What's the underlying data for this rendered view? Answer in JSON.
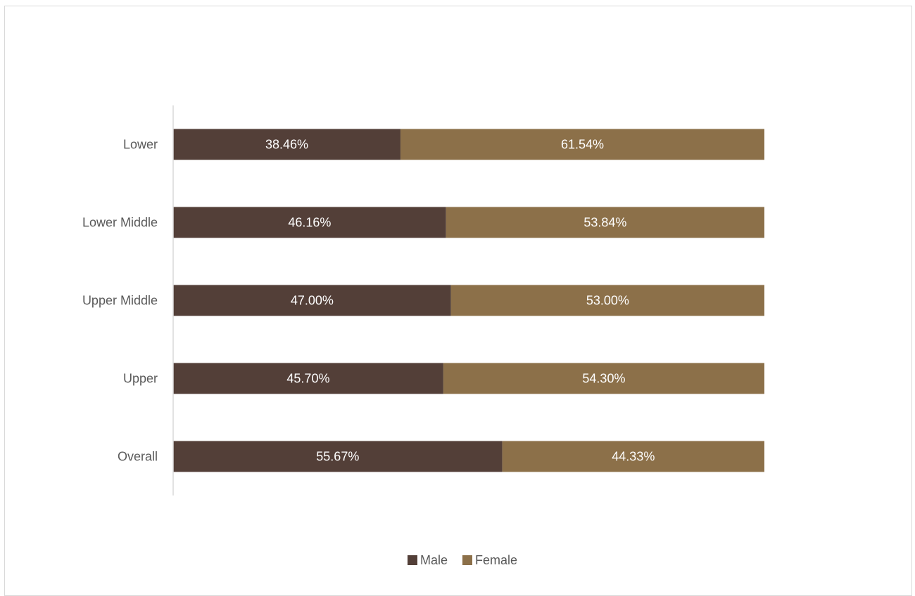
{
  "chart_data": {
    "type": "bar",
    "orientation": "horizontal",
    "stacked": "percent",
    "categories": [
      "Lower",
      "Lower Middle",
      "Upper Middle",
      "Upper",
      "Overall"
    ],
    "series": [
      {
        "name": "Male",
        "color": "#533f38",
        "values": [
          38.46,
          46.16,
          47.0,
          45.7,
          55.67
        ],
        "labels": [
          "38.46%",
          "46.16%",
          "47.00%",
          "45.70%",
          "55.67%"
        ]
      },
      {
        "name": "Female",
        "color": "#8c7049",
        "values": [
          61.54,
          53.84,
          53.0,
          54.3,
          44.33
        ],
        "labels": [
          "61.54%",
          "53.84%",
          "53.00%",
          "54.30%",
          "44.33%"
        ]
      }
    ],
    "xlim": [
      0,
      100
    ],
    "grid": false,
    "legend": "bottom-center",
    "axis_color": "#d9d9d9",
    "label_color": "#595959"
  }
}
